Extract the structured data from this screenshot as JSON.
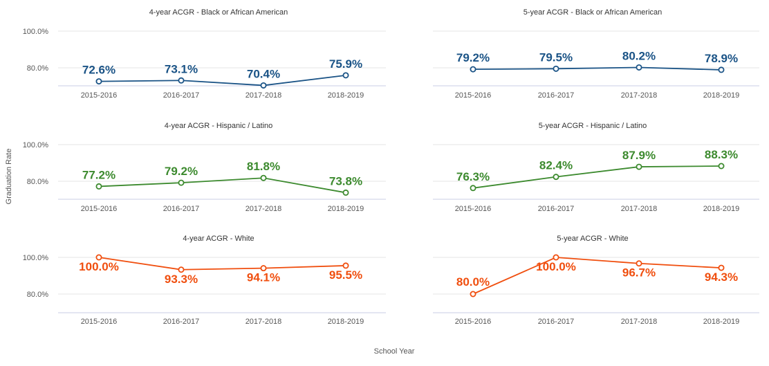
{
  "y_axis_title": "Graduation Rate",
  "x_axis_title": "School Year",
  "chart_data": [
    {
      "type": "line",
      "title": "4-year ACGR - Black or African American",
      "categories": [
        "2015-2016",
        "2016-2017",
        "2017-2018",
        "2018-2019"
      ],
      "values": [
        72.6,
        73.1,
        70.4,
        75.9
      ],
      "labels": [
        "72.6%",
        "73.1%",
        "70.4%",
        "75.9%"
      ],
      "color": "#1a5386",
      "ylim": [
        70.4,
        100
      ],
      "yticks": [
        {
          "v": 100,
          "label": "100.0%"
        },
        {
          "v": 80,
          "label": "80.0%"
        }
      ],
      "xlabel": "School Year",
      "ylabel": "Graduation Rate"
    },
    {
      "type": "line",
      "title": "5-year ACGR - Black or African American",
      "categories": [
        "2015-2016",
        "2016-2017",
        "2017-2018",
        "2018-2019"
      ],
      "values": [
        79.2,
        79.5,
        80.2,
        78.9
      ],
      "labels": [
        "79.2%",
        "79.5%",
        "80.2%",
        "78.9%"
      ],
      "color": "#1a5386",
      "ylim": [
        70.4,
        100
      ],
      "yticks": [],
      "xlabel": "School Year",
      "ylabel": "Graduation Rate"
    },
    {
      "type": "line",
      "title": "4-year ACGR - Hispanic / Latino",
      "categories": [
        "2015-2016",
        "2016-2017",
        "2017-2018",
        "2018-2019"
      ],
      "values": [
        77.2,
        79.2,
        81.8,
        73.8
      ],
      "labels": [
        "77.2%",
        "79.2%",
        "81.8%",
        "73.8%"
      ],
      "color": "#3c8a2e",
      "ylim": [
        70.4,
        100
      ],
      "yticks": [
        {
          "v": 100,
          "label": "100.0%"
        },
        {
          "v": 80,
          "label": "80.0%"
        }
      ],
      "xlabel": "School Year",
      "ylabel": "Graduation Rate"
    },
    {
      "type": "line",
      "title": "5-year ACGR - Hispanic / Latino",
      "categories": [
        "2015-2016",
        "2016-2017",
        "2017-2018",
        "2018-2019"
      ],
      "values": [
        76.3,
        82.4,
        87.9,
        88.3
      ],
      "labels": [
        "76.3%",
        "82.4%",
        "87.9%",
        "88.3%"
      ],
      "color": "#3c8a2e",
      "ylim": [
        70.4,
        100
      ],
      "yticks": [],
      "xlabel": "School Year",
      "ylabel": "Graduation Rate"
    },
    {
      "type": "line",
      "title": "4-year ACGR - White",
      "categories": [
        "2015-2016",
        "2016-2017",
        "2017-2018",
        "2018-2019"
      ],
      "values": [
        100.0,
        93.3,
        94.1,
        95.5
      ],
      "labels": [
        "100.0%",
        "93.3%",
        "94.1%",
        "95.5%"
      ],
      "color": "#f04e0e",
      "ylim": [
        70.4,
        100
      ],
      "yticks": [
        {
          "v": 100,
          "label": "100.0%"
        },
        {
          "v": 80,
          "label": "80.0%"
        }
      ],
      "xlabel": "School Year",
      "ylabel": "Graduation Rate"
    },
    {
      "type": "line",
      "title": "5-year ACGR - White",
      "categories": [
        "2015-2016",
        "2016-2017",
        "2017-2018",
        "2018-2019"
      ],
      "values": [
        80.0,
        100.0,
        96.7,
        94.3
      ],
      "labels": [
        "80.0%",
        "100.0%",
        "96.7%",
        "94.3%"
      ],
      "color": "#f04e0e",
      "ylim": [
        70.4,
        100
      ],
      "yticks": [],
      "xlabel": "School Year",
      "ylabel": "Graduation Rate"
    }
  ]
}
